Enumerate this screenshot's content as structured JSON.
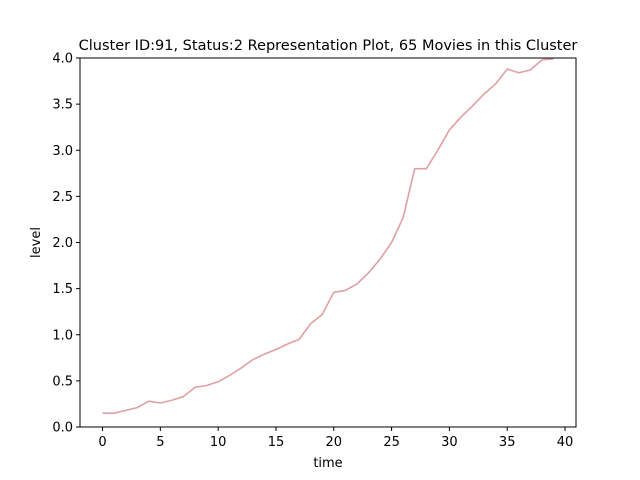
{
  "chart_data": {
    "type": "line",
    "title": "Cluster ID:91, Status:2 Representation Plot, 65 Movies in this Cluster",
    "xlabel": "time",
    "ylabel": "level",
    "xlim": [
      -1.95,
      40.95
    ],
    "ylim": [
      0.0,
      4.0
    ],
    "xticks": [
      0,
      5,
      10,
      15,
      20,
      25,
      30,
      35,
      40
    ],
    "xtick_labels": [
      "0",
      "5",
      "10",
      "15",
      "20",
      "25",
      "30",
      "35",
      "40"
    ],
    "yticks": [
      0.0,
      0.5,
      1.0,
      1.5,
      2.0,
      2.5,
      3.0,
      3.5,
      4.0
    ],
    "ytick_labels": [
      "0.0",
      "0.5",
      "1.0",
      "1.5",
      "2.0",
      "2.5",
      "3.0",
      "3.5",
      "4.0"
    ],
    "grid": false,
    "legend": "none",
    "series": [
      {
        "color": "#e0a0a3",
        "x": [
          0,
          1,
          2,
          3,
          4,
          5,
          6,
          7,
          8,
          9,
          10,
          11,
          12,
          13,
          14,
          15,
          16,
          17,
          18,
          19,
          20,
          21,
          22,
          23,
          24,
          25,
          26,
          27,
          28,
          29,
          30,
          31,
          32,
          33,
          34,
          35,
          36,
          37,
          38,
          39
        ],
        "y": [
          0.15,
          0.15,
          0.18,
          0.21,
          0.28,
          0.26,
          0.29,
          0.33,
          0.43,
          0.45,
          0.49,
          0.56,
          0.64,
          0.73,
          0.79,
          0.84,
          0.9,
          0.95,
          1.12,
          1.22,
          1.46,
          1.48,
          1.55,
          1.67,
          1.82,
          2.0,
          2.27,
          2.8,
          2.8,
          3.0,
          3.22,
          3.36,
          3.48,
          3.61,
          3.72,
          3.88,
          3.84,
          3.87,
          3.98,
          3.99
        ]
      }
    ]
  }
}
